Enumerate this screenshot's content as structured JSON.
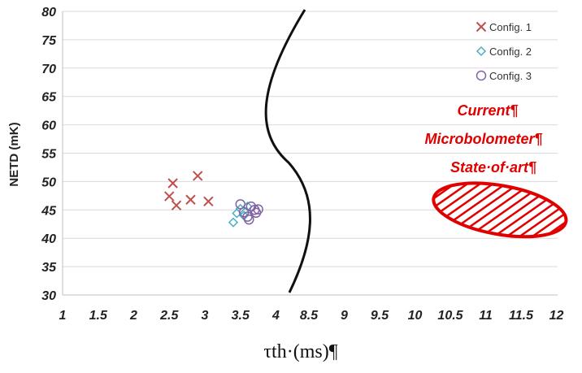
{
  "chart_data": {
    "type": "scatter",
    "title": "",
    "xlabel": "τth·(ms)¶",
    "ylabel": "NETD (mK)",
    "ylim": [
      30,
      80
    ],
    "yticks": [
      30,
      35,
      40,
      45,
      50,
      55,
      60,
      65,
      70,
      75,
      80
    ],
    "xtick_labels_left": [
      "1",
      "1.5",
      "2",
      "2.5",
      "3",
      "3.5",
      "4"
    ],
    "xtick_labels_right": [
      "8.5",
      "9",
      "9.5",
      "10",
      "10.5",
      "11",
      "11.5",
      "12"
    ],
    "x_axis_break": "between 4 and 8.5",
    "grid": "horizontal",
    "legend_position": "top-right",
    "series": [
      {
        "name": "Config. 1",
        "marker": "x",
        "color": "#c0504d",
        "points": [
          [
            2.5,
            47.4
          ],
          [
            2.55,
            49.7
          ],
          [
            2.6,
            45.8
          ],
          [
            2.8,
            46.8
          ],
          [
            2.9,
            51.0
          ],
          [
            3.05,
            46.5
          ]
        ]
      },
      {
        "name": "Config. 2",
        "marker": "diamond",
        "color": "#4bacc6",
        "points": [
          [
            3.4,
            42.8
          ],
          [
            3.45,
            44.4
          ],
          [
            3.5,
            45.2
          ],
          [
            3.55,
            44.0
          ],
          [
            3.6,
            45.6
          ]
        ]
      },
      {
        "name": "Config. 3",
        "marker": "circle",
        "color": "#8064a2",
        "points": [
          [
            3.5,
            46.0
          ],
          [
            3.55,
            44.6
          ],
          [
            3.6,
            43.8
          ],
          [
            3.62,
            43.3
          ],
          [
            3.65,
            45.6
          ],
          [
            3.7,
            45.0
          ],
          [
            3.72,
            44.5
          ],
          [
            3.75,
            45.1
          ]
        ]
      }
    ],
    "annotation": {
      "lines": [
        "Current¶",
        "Microbolometer¶",
        "State·of·art¶"
      ],
      "region": {
        "x_center": 11.2,
        "y_center": 45.0,
        "x_halfwidth": 0.95,
        "y_halfheight": 4.3
      },
      "color": "#e00000"
    }
  }
}
